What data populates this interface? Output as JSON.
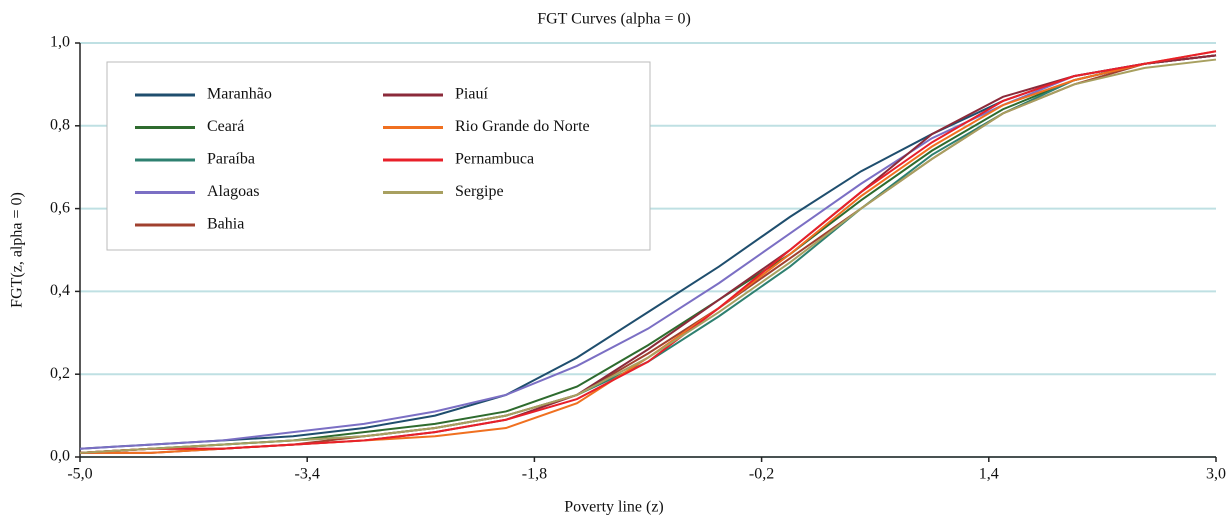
{
  "chart_data": {
    "type": "line",
    "title": "FGT Curves (alpha = 0)",
    "x_label": "Poverty line (z)",
    "y_label": "FGT(z, alpha = 0)",
    "x": [
      -5,
      -4.5,
      -4,
      -3.5,
      -3,
      -2.5,
      -2,
      -1.5,
      -1,
      -0.5,
      0,
      0.5,
      1,
      1.5,
      2,
      2.5,
      3
    ],
    "xlim": [
      -5,
      3
    ],
    "ylim": [
      0,
      1
    ],
    "xticks": [
      {
        "value": -5,
        "label": "-5,0"
      },
      {
        "value": -3.4,
        "label": "-3,4"
      },
      {
        "value": -1.8,
        "label": "-1,8"
      },
      {
        "value": -0.2,
        "label": "-0,2"
      },
      {
        "value": 1.4,
        "label": "1,4"
      },
      {
        "value": 3,
        "label": "3,0"
      }
    ],
    "yticks": [
      {
        "value": 0,
        "label": "0,0"
      },
      {
        "value": 0.2,
        "label": "0,2"
      },
      {
        "value": 0.4,
        "label": "0,4"
      },
      {
        "value": 0.6,
        "label": "0,6"
      },
      {
        "value": 0.8,
        "label": "0,8"
      },
      {
        "value": 1,
        "label": "1,0"
      }
    ],
    "grid": true,
    "series": [
      {
        "name": "Maranhão",
        "color": "#1f4e6e",
        "values": [
          0.02,
          0.03,
          0.04,
          0.05,
          0.07,
          0.1,
          0.15,
          0.24,
          0.35,
          0.46,
          0.58,
          0.69,
          0.78,
          0.86,
          0.92,
          0.95,
          0.97
        ]
      },
      {
        "name": "Ceará",
        "color": "#2e6b2e",
        "values": [
          0.01,
          0.02,
          0.03,
          0.04,
          0.06,
          0.08,
          0.11,
          0.17,
          0.27,
          0.38,
          0.49,
          0.62,
          0.74,
          0.84,
          0.91,
          0.95,
          0.97
        ]
      },
      {
        "name": "Paraíba",
        "color": "#2e8070",
        "values": [
          0.01,
          0.02,
          0.03,
          0.04,
          0.05,
          0.07,
          0.1,
          0.15,
          0.23,
          0.34,
          0.46,
          0.6,
          0.73,
          0.83,
          0.91,
          0.95,
          0.97
        ]
      },
      {
        "name": "Alagoas",
        "color": "#7b6fc4",
        "values": [
          0.02,
          0.03,
          0.04,
          0.06,
          0.08,
          0.11,
          0.15,
          0.22,
          0.31,
          0.42,
          0.54,
          0.66,
          0.77,
          0.85,
          0.92,
          0.95,
          0.97
        ]
      },
      {
        "name": "Bahia",
        "color": "#a0402f",
        "values": [
          0.01,
          0.02,
          0.02,
          0.03,
          0.05,
          0.07,
          0.1,
          0.15,
          0.25,
          0.36,
          0.48,
          0.6,
          0.72,
          0.83,
          0.9,
          0.95,
          0.97
        ]
      },
      {
        "name": "Piauí",
        "color": "#8b2a3a",
        "values": [
          0.01,
          0.01,
          0.02,
          0.03,
          0.04,
          0.06,
          0.09,
          0.15,
          0.26,
          0.38,
          0.5,
          0.64,
          0.78,
          0.87,
          0.92,
          0.95,
          0.97
        ]
      },
      {
        "name": "Rio Grande do Norte",
        "color": "#f07020",
        "values": [
          0.01,
          0.01,
          0.02,
          0.03,
          0.04,
          0.05,
          0.07,
          0.13,
          0.24,
          0.36,
          0.49,
          0.63,
          0.75,
          0.85,
          0.91,
          0.95,
          0.98
        ]
      },
      {
        "name": "Pernambuca",
        "color": "#e8202a",
        "values": [
          0.01,
          0.02,
          0.02,
          0.03,
          0.04,
          0.06,
          0.09,
          0.14,
          0.23,
          0.36,
          0.5,
          0.64,
          0.76,
          0.86,
          0.92,
          0.95,
          0.98
        ]
      },
      {
        "name": "Sergipe",
        "color": "#a8a060",
        "values": [
          0.01,
          0.02,
          0.03,
          0.04,
          0.05,
          0.07,
          0.1,
          0.15,
          0.24,
          0.35,
          0.47,
          0.6,
          0.72,
          0.83,
          0.9,
          0.94,
          0.96
        ]
      }
    ]
  }
}
